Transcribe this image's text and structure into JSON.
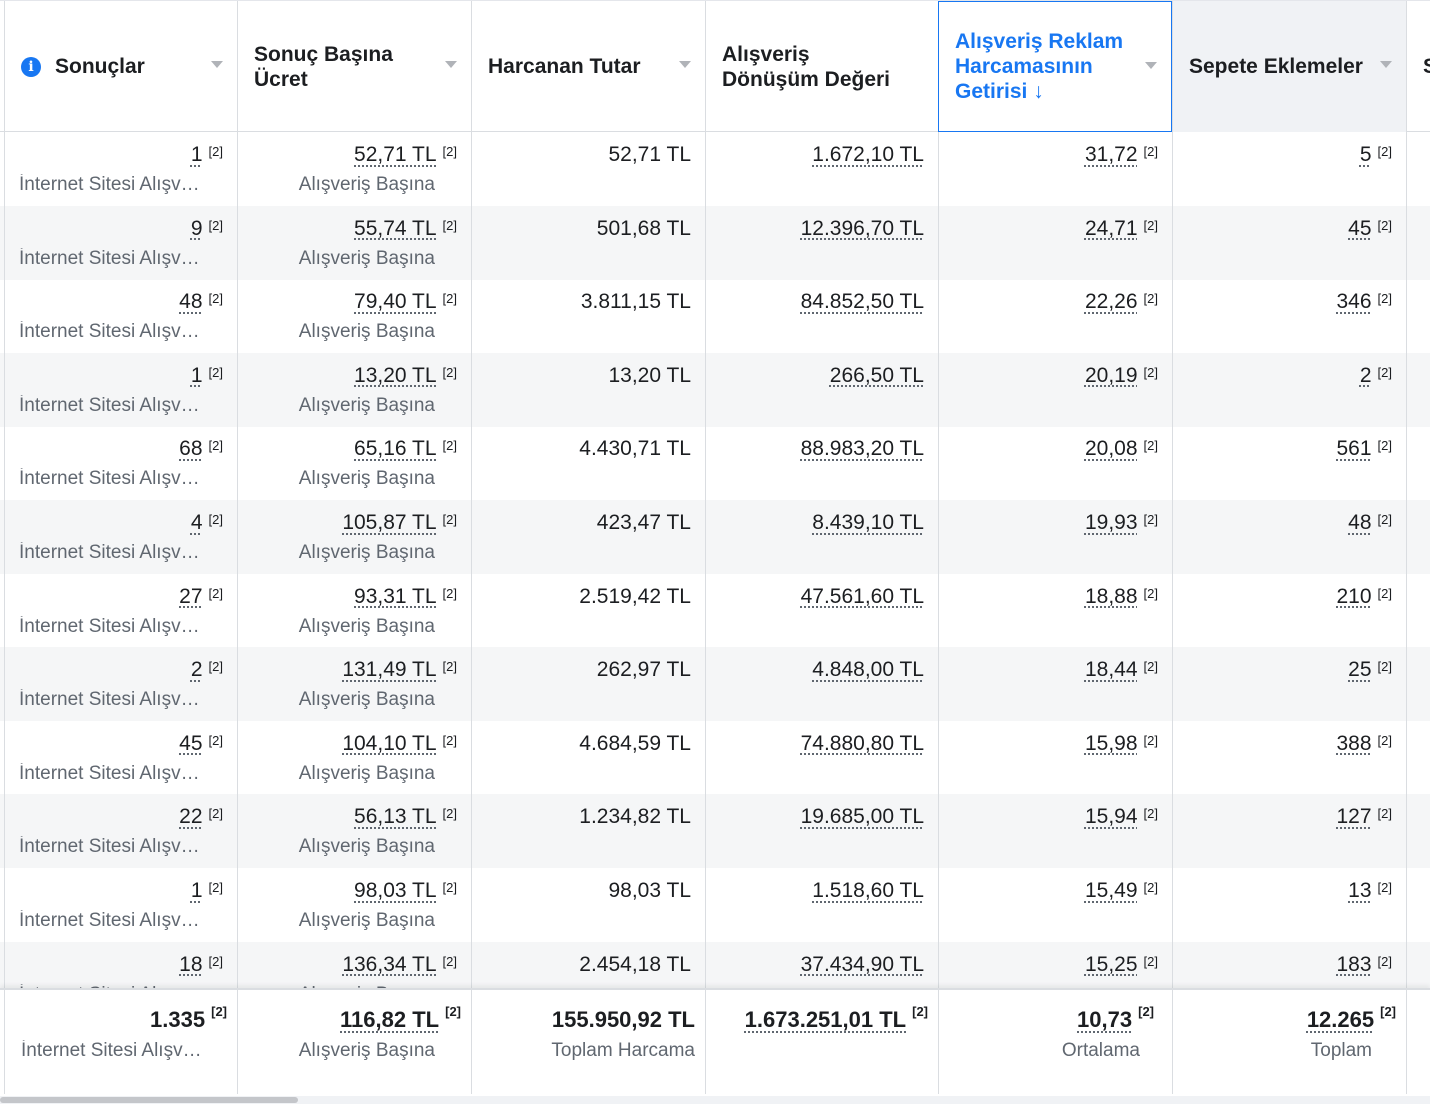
{
  "header": {
    "results": "Sonuçlar",
    "cost_per_result": "Sonuç Başına Ücret",
    "amount_spent": "Harcanan Tutar",
    "purchase_value": "Alışveriş Dönüşüm Değeri",
    "roas": "Alışveriş Reklam Harcamasının Getirisi",
    "roas_sort_arrow": "↓",
    "adds_to_cart": "Sepete Eklemeler",
    "next_col_initial": "S",
    "info_icon": "i"
  },
  "ref": "[2]",
  "rows": [
    {
      "results": "1",
      "results_sub": "İnternet Sitesi Alışveriş",
      "cpr": "52,71 TL",
      "cpr_sub": "Alışveriş Başına",
      "spent": "52,71 TL",
      "value": "1.672,10 TL",
      "roas": "31,72",
      "cart": "5"
    },
    {
      "results": "9",
      "results_sub": "İnternet Sitesi Alışveriş",
      "cpr": "55,74 TL",
      "cpr_sub": "Alışveriş Başına",
      "spent": "501,68 TL",
      "value": "12.396,70 TL",
      "roas": "24,71",
      "cart": "45"
    },
    {
      "results": "48",
      "results_sub": "İnternet Sitesi Alışveriş",
      "cpr": "79,40 TL",
      "cpr_sub": "Alışveriş Başına",
      "spent": "3.811,15 TL",
      "value": "84.852,50 TL",
      "roas": "22,26",
      "cart": "346"
    },
    {
      "results": "1",
      "results_sub": "İnternet Sitesi Alışveriş",
      "cpr": "13,20 TL",
      "cpr_sub": "Alışveriş Başına",
      "spent": "13,20 TL",
      "value": "266,50 TL",
      "roas": "20,19",
      "cart": "2"
    },
    {
      "results": "68",
      "results_sub": "İnternet Sitesi Alışveriş",
      "cpr": "65,16 TL",
      "cpr_sub": "Alışveriş Başına",
      "spent": "4.430,71 TL",
      "value": "88.983,20 TL",
      "roas": "20,08",
      "cart": "561"
    },
    {
      "results": "4",
      "results_sub": "İnternet Sitesi Alışveriş",
      "cpr": "105,87 TL",
      "cpr_sub": "Alışveriş Başına",
      "spent": "423,47 TL",
      "value": "8.439,10 TL",
      "roas": "19,93",
      "cart": "48"
    },
    {
      "results": "27",
      "results_sub": "İnternet Sitesi Alışveriş",
      "cpr": "93,31 TL",
      "cpr_sub": "Alışveriş Başına",
      "spent": "2.519,42 TL",
      "value": "47.561,60 TL",
      "roas": "18,88",
      "cart": "210"
    },
    {
      "results": "2",
      "results_sub": "İnternet Sitesi Alışveriş",
      "cpr": "131,49 TL",
      "cpr_sub": "Alışveriş Başına",
      "spent": "262,97 TL",
      "value": "4.848,00 TL",
      "roas": "18,44",
      "cart": "25"
    },
    {
      "results": "45",
      "results_sub": "İnternet Sitesi Alışveriş",
      "cpr": "104,10 TL",
      "cpr_sub": "Alışveriş Başına",
      "spent": "4.684,59 TL",
      "value": "74.880,80 TL",
      "roas": "15,98",
      "cart": "388"
    },
    {
      "results": "22",
      "results_sub": "İnternet Sitesi Alışveriş",
      "cpr": "56,13 TL",
      "cpr_sub": "Alışveriş Başına",
      "spent": "1.234,82 TL",
      "value": "19.685,00 TL",
      "roas": "15,94",
      "cart": "127"
    },
    {
      "results": "1",
      "results_sub": "İnternet Sitesi Alışveriş",
      "cpr": "98,03 TL",
      "cpr_sub": "Alışveriş Başına",
      "spent": "98,03 TL",
      "value": "1.518,60 TL",
      "roas": "15,49",
      "cart": "13"
    },
    {
      "results": "18",
      "results_sub": "İnternet Sitesi Alışveriş",
      "cpr": "136,34 TL",
      "cpr_sub": "Alışveriş Başına",
      "spent": "2.454,18 TL",
      "value": "37.434,90 TL",
      "roas": "15,25",
      "cart": "183"
    }
  ],
  "totals": {
    "results": "1.335",
    "results_sub": "İnternet Sitesi Alışveriş",
    "cpr": "116,82 TL",
    "cpr_sub": "Alışveriş Başına",
    "spent": "155.950,92 TL",
    "spent_sub": "Toplam Harcama",
    "value": "1.673.251,01 TL",
    "roas": "10,73",
    "roas_sub": "Ortalama",
    "cart": "12.265",
    "cart_sub": "Toplam"
  },
  "colors": {
    "accent": "#1877f2",
    "border": "#dadde1",
    "row_alt": "#f5f6f7",
    "muted_text": "#606770"
  }
}
